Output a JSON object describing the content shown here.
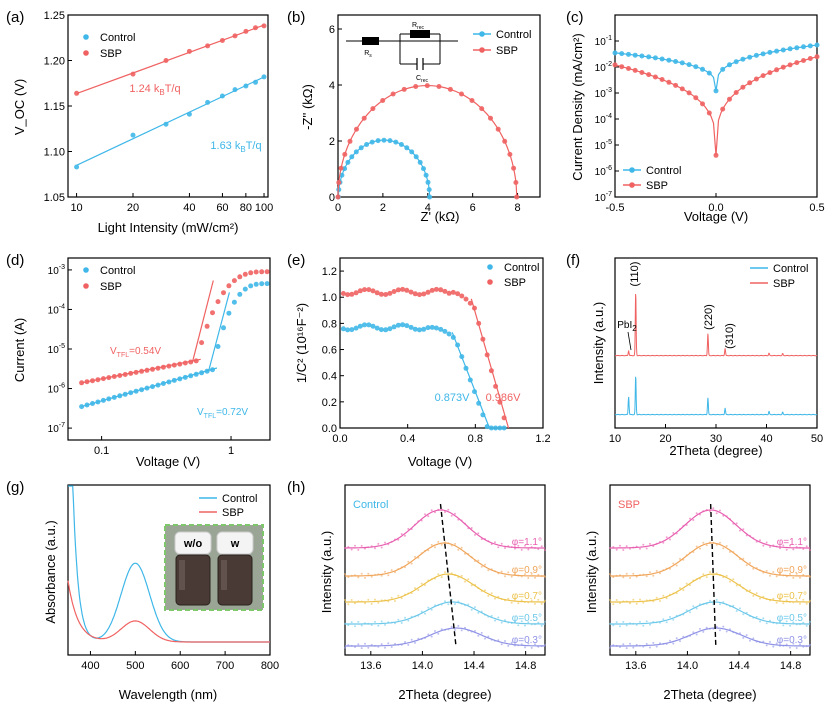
{
  "colors": {
    "control": "#3fb7e8",
    "sbp": "#f06262",
    "axis": "#000000"
  },
  "chart_data": [
    {
      "panel": "(a)",
      "type": "scatter",
      "xlabel": "Light Intensity (mW/cm²)",
      "ylabel": "V_OC (V)",
      "xscale": "log",
      "xlim": [
        9,
        105
      ],
      "ylim": [
        1.05,
        1.25
      ],
      "xticks": [
        10,
        20,
        40,
        60,
        80,
        100
      ],
      "yticks": [
        1.05,
        1.1,
        1.15,
        1.2,
        1.25
      ],
      "xtick_labels": [
        "10",
        "20",
        "40",
        "60",
        "80",
        "100"
      ],
      "ytick_labels": [
        "1.05",
        "1.10",
        "1.15",
        "1.20",
        "1.25"
      ],
      "legend_position": "top-left",
      "series": [
        {
          "name": "Control",
          "color": "#3fb7e8",
          "x": [
            10,
            20,
            30,
            40,
            50,
            60,
            70,
            80,
            90,
            100
          ],
          "y": [
            1.083,
            1.118,
            1.13,
            1.141,
            1.154,
            1.161,
            1.168,
            1.172,
            1.176,
            1.182
          ]
        },
        {
          "name": "SBP",
          "color": "#f06262",
          "x": [
            10,
            20,
            30,
            40,
            50,
            60,
            70,
            80,
            90,
            100
          ],
          "y": [
            1.164,
            1.185,
            1.2,
            1.21,
            1.216,
            1.222,
            1.227,
            1.232,
            1.236,
            1.238
          ]
        }
      ],
      "annotations": [
        "1.24 k",
        "T/q",
        "1.63 k",
        "T/q"
      ],
      "annotation_sub": "B"
    },
    {
      "panel": "(b)",
      "type": "scatter",
      "xlabel": "Z' (kΩ)",
      "ylabel": "-Z'' (kΩ)",
      "xlim": [
        0,
        9
      ],
      "ylim": [
        0,
        6.5
      ],
      "xticks": [
        0,
        2,
        4,
        6,
        8
      ],
      "yticks": [
        0,
        2,
        4,
        6
      ],
      "xtick_labels": [
        "0",
        "2",
        "4",
        "6",
        "8"
      ],
      "ytick_labels": [
        "0",
        "2",
        "4",
        "6"
      ],
      "legend_position": "top-right",
      "series": [
        {
          "name": "Control",
          "color": "#3fb7e8",
          "center": 2.05,
          "radius": 2.03
        },
        {
          "name": "SBP",
          "color": "#f06262",
          "center": 3.98,
          "radius": 3.98
        }
      ],
      "circuit_labels": [
        "R",
        "s",
        "R",
        "rec",
        "C",
        "rec"
      ]
    },
    {
      "panel": "(c)",
      "type": "line",
      "xlabel": "Voltage (V)",
      "ylabel": "Current Density (mA/cm²)",
      "yscale": "log",
      "xlim": [
        -0.5,
        0.5
      ],
      "ylim": [
        1e-07,
        1
      ],
      "xticks": [
        -0.5,
        0.0,
        0.5
      ],
      "xtick_labels": [
        "-0.5",
        "0.0",
        "0.5"
      ],
      "yticks": [
        1e-07,
        1e-06,
        1e-05,
        0.0001,
        0.001,
        0.01,
        0.1
      ],
      "ytick_exponents": [
        "-7",
        "-6",
        "-5",
        "-4",
        "-3",
        "-2",
        "-1"
      ],
      "ytick_base": "10",
      "legend_position": "bottom-left",
      "series": [
        {
          "name": "Control",
          "color": "#3fb7e8",
          "j_min": 0.0012,
          "j_left": 0.035,
          "j_right": 0.07
        },
        {
          "name": "SBP",
          "color": "#f06262",
          "j_min": 4e-06,
          "j_left": 0.012,
          "j_right": 0.025
        }
      ]
    },
    {
      "panel": "(d)",
      "type": "scatter",
      "xlabel": "Voltage (V)",
      "ylabel": "Current (A)",
      "xscale": "log",
      "yscale": "log",
      "xlim": [
        0.055,
        2.0
      ],
      "ylim": [
        5e-08,
        0.002
      ],
      "xticks": [
        0.1,
        1
      ],
      "xtick_labels": [
        "0.1",
        "1"
      ],
      "yticks": [
        1e-07,
        1e-06,
        1e-05,
        0.0001,
        0.001
      ],
      "ytick_exponents": [
        "-7",
        "-6",
        "-5",
        "-4",
        "-3"
      ],
      "ytick_base": "10",
      "legend_position": "top-left",
      "series": [
        {
          "name": "Control",
          "color": "#3fb7e8",
          "v_tfl": 0.72,
          "i_start": 3.5e-07,
          "i_knee": 3e-06,
          "i_end": 0.00045
        },
        {
          "name": "SBP",
          "color": "#f06262",
          "v_tfl": 0.54,
          "i_start": 1.4e-06,
          "i_knee": 5e-06,
          "i_end": 0.0009
        }
      ],
      "annotations": [
        "V",
        "TFL",
        "=0.54V",
        "V",
        "TFL",
        "=0.72V"
      ]
    },
    {
      "panel": "(e)",
      "type": "scatter",
      "xlabel": "Voltage (V)",
      "ylabel": "1/C² (10¹⁶F⁻²)",
      "xlim": [
        0,
        1.2
      ],
      "ylim": [
        0,
        1.3
      ],
      "xticks": [
        0,
        0.4,
        0.8,
        1.2
      ],
      "yticks": [
        0,
        0.2,
        0.4,
        0.6,
        0.8,
        1.0,
        1.2
      ],
      "xtick_labels": [
        "0.0",
        "0.4",
        "0.8",
        "1.2"
      ],
      "ytick_labels": [
        "0.0",
        "0.2",
        "0.4",
        "0.6",
        "0.8",
        "1.0",
        "1.2"
      ],
      "legend_position": "top-right",
      "series": [
        {
          "name": "Control",
          "color": "#3fb7e8",
          "plateau": 0.77,
          "vbi": 0.873
        },
        {
          "name": "SBP",
          "color": "#f06262",
          "plateau": 1.04,
          "vbi": 0.986
        }
      ],
      "annotations": [
        "0.873V",
        "0.986V"
      ]
    },
    {
      "panel": "(f)",
      "type": "line",
      "xlabel": "2Theta (degree)",
      "ylabel": "Intensity (a.u.)",
      "xlim": [
        10,
        50
      ],
      "xticks": [
        10,
        20,
        30,
        40,
        50
      ],
      "xtick_labels": [
        "10",
        "20",
        "30",
        "40",
        "50"
      ],
      "legend_position": "top-right",
      "series": [
        {
          "name": "Control",
          "color": "#3fb7e8",
          "peaks": [
            [
              12.7,
              0.45
            ],
            [
              14.1,
              0.95
            ],
            [
              28.4,
              0.42
            ],
            [
              31.8,
              0.16
            ],
            [
              40.5,
              0.08
            ],
            [
              43.2,
              0.06
            ]
          ]
        },
        {
          "name": "SBP",
          "color": "#f06262",
          "peaks": [
            [
              12.7,
              0.12
            ],
            [
              14.1,
              1.55
            ],
            [
              28.4,
              0.55
            ],
            [
              31.8,
              0.18
            ],
            [
              40.5,
              0.06
            ],
            [
              43.2,
              0.05
            ]
          ]
        }
      ],
      "annotations": [
        "(110)",
        "PbI",
        "2",
        "(220)",
        "(310)"
      ]
    },
    {
      "panel": "(g)",
      "type": "line",
      "xlabel": "Wavelength (nm)",
      "ylabel": "Absorbance (a.u.)",
      "xlim": [
        350,
        800
      ],
      "xticks": [
        400,
        500,
        600,
        700,
        800
      ],
      "xtick_labels": [
        "400",
        "500",
        "600",
        "700",
        "800"
      ],
      "legend_position": "top-right",
      "series": [
        {
          "name": "Control",
          "color": "#3fb7e8",
          "peak_nm": 500,
          "peak_height": 0.45
        },
        {
          "name": "SBP",
          "color": "#f06262",
          "peak_nm": 500,
          "peak_height": 0.12
        }
      ],
      "inset_labels": [
        "w/o",
        "w"
      ]
    },
    {
      "panel": "(h)",
      "type": "line",
      "xlabel": "2Theta (degree)",
      "ylabel": "Intensity (a.u.)",
      "xlim": [
        13.4,
        14.95
      ],
      "xticks": [
        13.6,
        14.0,
        14.4,
        14.8
      ],
      "xtick_labels": [
        "13.6",
        "14.0",
        "14.4",
        "14.8"
      ],
      "subplots": [
        {
          "name": "Control",
          "color": "#3fb7e8",
          "peaks": [
            14.14,
            14.17,
            14.2,
            14.23,
            14.26
          ]
        },
        {
          "name": "SBP",
          "color": "#f06262",
          "peaks": [
            14.18,
            14.19,
            14.2,
            14.21,
            14.22
          ]
        }
      ],
      "phi_labels": [
        "φ=1.1°",
        "φ=0.9°",
        "φ=0.7°",
        "φ=0.5°",
        "φ=0.3°"
      ],
      "phi_colors": [
        "#e85fb0",
        "#f0a55a",
        "#ecc24a",
        "#6cc8ea",
        "#8f92e6"
      ]
    }
  ]
}
